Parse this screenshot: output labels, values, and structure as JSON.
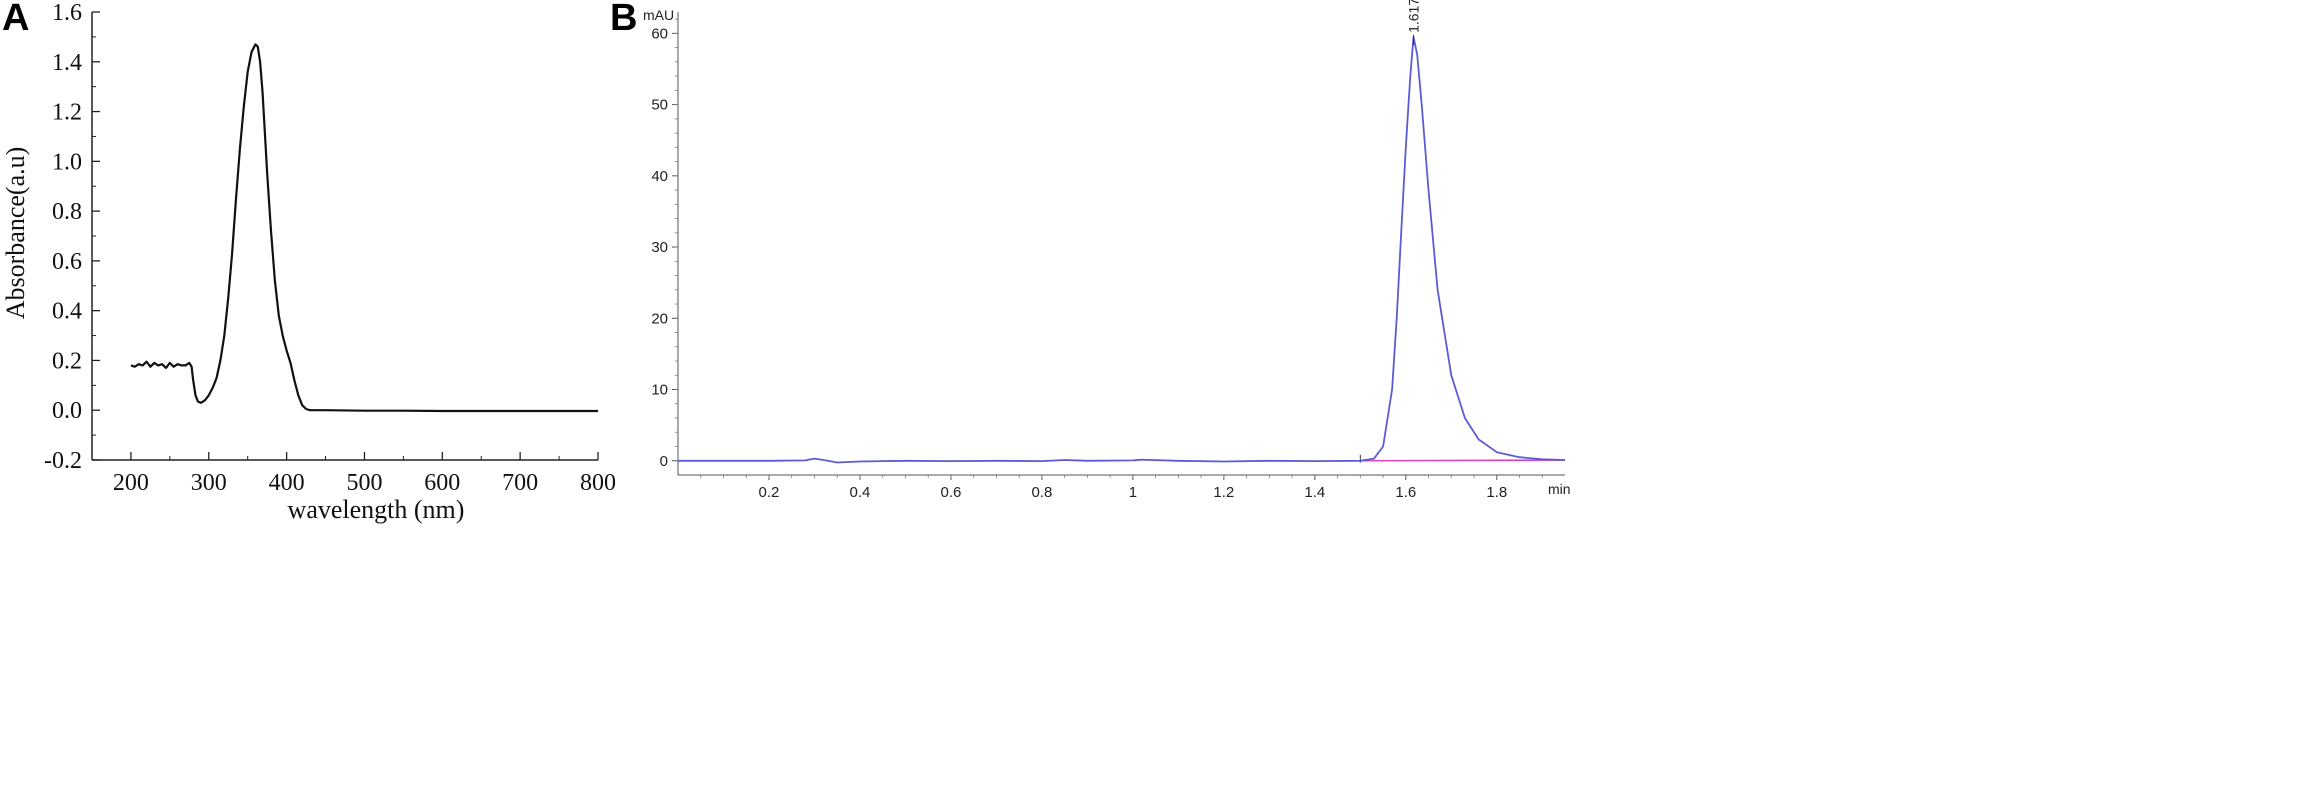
{
  "panels": {
    "a_label": "A",
    "b_label": "B"
  },
  "chart_data": [
    {
      "type": "line",
      "panel": "A",
      "xlabel": "wavelength (nm)",
      "ylabel": "Absorbance(a.u)",
      "xlim": [
        150,
        800
      ],
      "ylim": [
        -0.2,
        1.6
      ],
      "x_ticks": [
        200,
        300,
        400,
        500,
        600,
        700,
        800
      ],
      "x_tick_labels": [
        "200",
        "300",
        "400",
        "500",
        "600",
        "700",
        "800"
      ],
      "y_ticks": [
        -0.2,
        0.0,
        0.2,
        0.4,
        0.6,
        0.8,
        1.0,
        1.2,
        1.4,
        1.6
      ],
      "y_tick_labels": [
        "-0.2",
        "0.0",
        "0.2",
        "0.4",
        "0.6",
        "0.8",
        "1.0",
        "1.2",
        "1.4",
        "1.6"
      ],
      "line_color": "#111111",
      "series": [
        {
          "x": [
            200,
            205,
            210,
            215,
            220,
            225,
            230,
            235,
            240,
            245,
            250,
            255,
            260,
            265,
            270,
            275,
            278,
            280,
            283,
            286,
            290,
            295,
            300,
            305,
            310,
            315,
            320,
            325,
            330,
            335,
            340,
            345,
            350,
            355,
            360,
            363,
            366,
            369,
            372,
            375,
            380,
            385,
            390,
            395,
            400,
            405,
            410,
            415,
            420,
            425,
            430,
            440,
            450,
            500,
            550,
            600,
            650,
            700,
            750,
            800
          ],
          "y": [
            0.18,
            0.175,
            0.185,
            0.18,
            0.195,
            0.175,
            0.19,
            0.18,
            0.185,
            0.17,
            0.19,
            0.175,
            0.185,
            0.18,
            0.18,
            0.19,
            0.175,
            0.12,
            0.06,
            0.035,
            0.03,
            0.04,
            0.06,
            0.09,
            0.13,
            0.2,
            0.3,
            0.45,
            0.63,
            0.85,
            1.05,
            1.22,
            1.36,
            1.44,
            1.47,
            1.46,
            1.4,
            1.28,
            1.12,
            0.95,
            0.72,
            0.52,
            0.38,
            0.3,
            0.24,
            0.19,
            0.12,
            0.06,
            0.02,
            0.005,
            0.0,
            0.0,
            0.0,
            -0.002,
            -0.002,
            -0.003,
            -0.003,
            -0.003,
            -0.003,
            -0.003
          ]
        }
      ]
    },
    {
      "type": "line",
      "panel": "B",
      "xlabel": "min",
      "ylabel": "mAU",
      "xlim": [
        0.0,
        1.95
      ],
      "ylim": [
        -2.0,
        63.0
      ],
      "x_ticks": [
        0.2,
        0.4,
        0.6,
        0.8,
        1.0,
        1.2,
        1.4,
        1.6,
        1.8
      ],
      "x_tick_labels": [
        "0.2",
        "0.4",
        "0.6",
        "0.8",
        "1",
        "1.2",
        "1.4",
        "1.6",
        "1.8"
      ],
      "y_ticks": [
        0,
        10,
        20,
        30,
        40,
        50,
        60
      ],
      "y_tick_labels": [
        "0",
        "10",
        "20",
        "30",
        "40",
        "50",
        "60"
      ],
      "peak_label": "1.617",
      "peak_label_x": 1.617,
      "signal_color": "#5b5bd6",
      "baseline_color": "#e040c8",
      "baseline": {
        "x": [
          1.5,
          1.95
        ],
        "y": [
          0.0,
          0.1
        ]
      },
      "series": [
        {
          "x": [
            0.0,
            0.1,
            0.2,
            0.28,
            0.3,
            0.32,
            0.35,
            0.4,
            0.5,
            0.6,
            0.7,
            0.8,
            0.85,
            0.9,
            1.0,
            1.02,
            1.1,
            1.2,
            1.3,
            1.4,
            1.5,
            1.53,
            1.55,
            1.57,
            1.58,
            1.59,
            1.6,
            1.61,
            1.617,
            1.625,
            1.635,
            1.65,
            1.67,
            1.7,
            1.73,
            1.76,
            1.8,
            1.85,
            1.9,
            1.95
          ],
          "y": [
            0.0,
            0.0,
            0.0,
            0.05,
            0.3,
            0.1,
            -0.25,
            -0.1,
            0.0,
            -0.05,
            0.0,
            -0.05,
            0.1,
            0.0,
            0.05,
            0.15,
            0.0,
            -0.1,
            0.0,
            -0.05,
            0.0,
            0.3,
            2.0,
            10.0,
            20.0,
            32.0,
            44.0,
            54.0,
            59.5,
            57.0,
            50.0,
            38.0,
            24.0,
            12.0,
            6.0,
            3.0,
            1.2,
            0.5,
            0.2,
            0.1
          ]
        }
      ]
    }
  ]
}
